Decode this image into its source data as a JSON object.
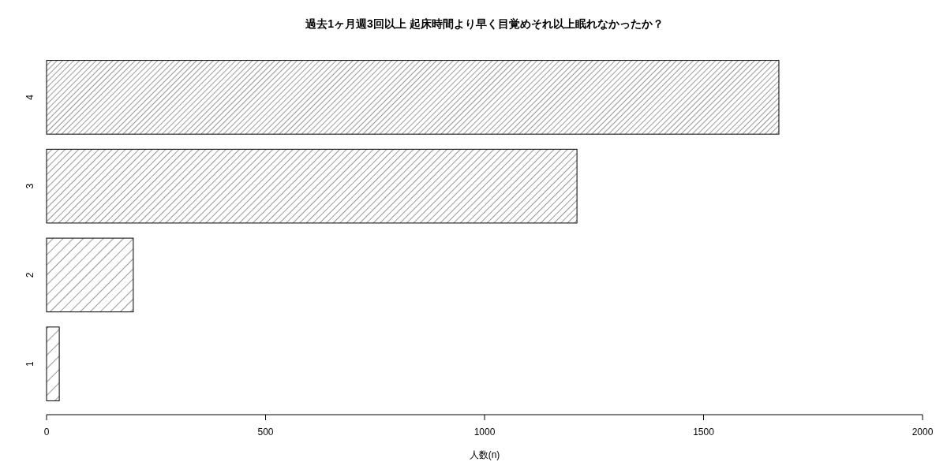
{
  "chart_data": {
    "type": "bar",
    "orientation": "horizontal",
    "title": "過去1ヶ月週3回以上 起床時間より早く目覚めそれ以上眠れなかったか？",
    "xlabel": "人数(n)",
    "categories": [
      "4",
      "3",
      "2",
      "1"
    ],
    "values": [
      1672,
      1211,
      198,
      29
    ],
    "xlim": [
      0,
      2000
    ],
    "xticks": [
      0,
      500,
      1000,
      1500,
      2000
    ],
    "grid": false
  }
}
